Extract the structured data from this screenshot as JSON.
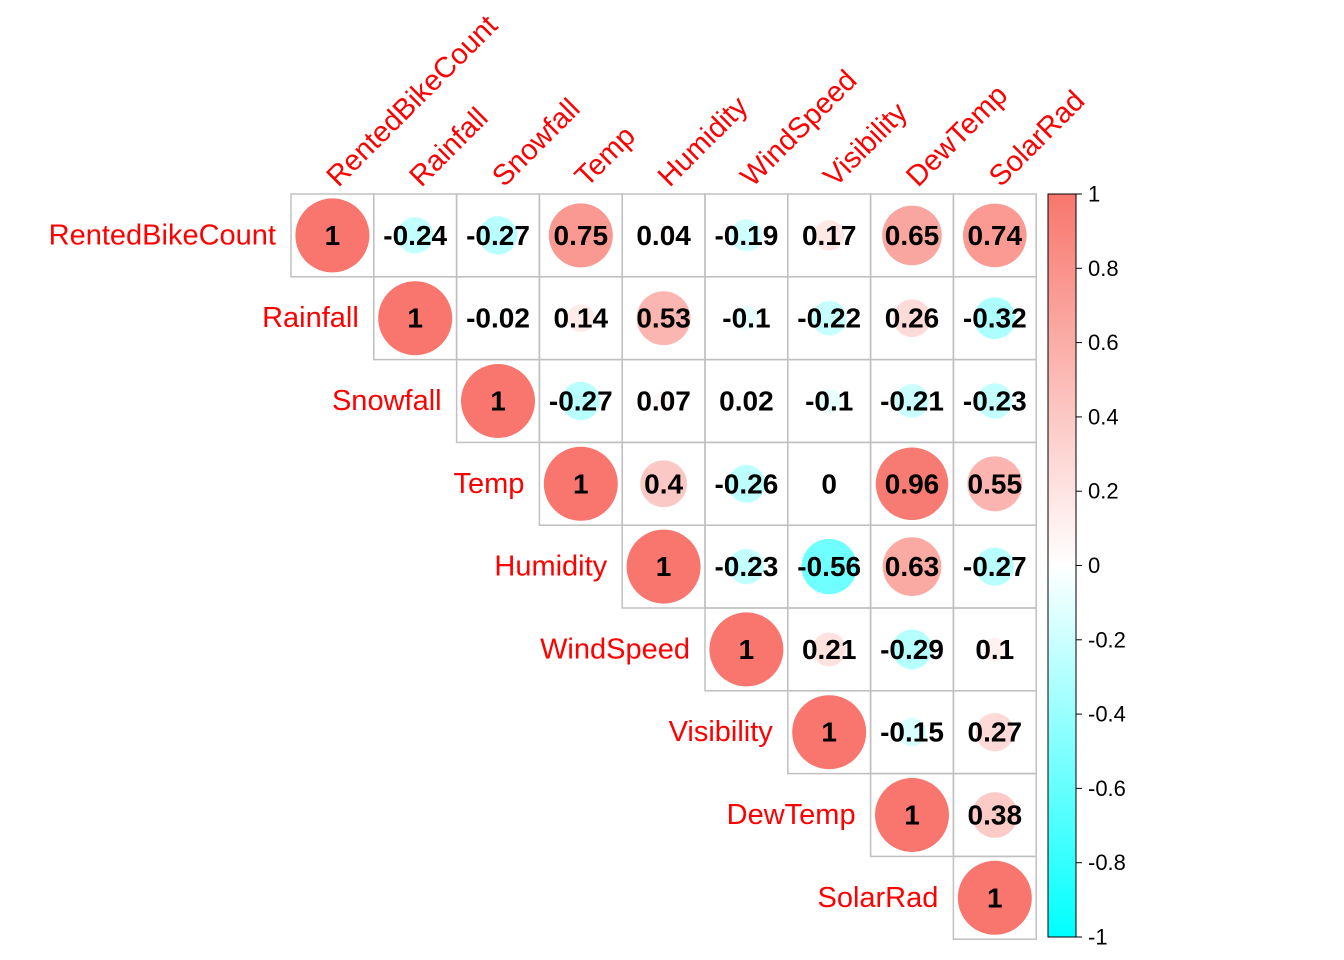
{
  "chart_data": {
    "type": "heatmap",
    "title": "",
    "variables": [
      "RentedBikeCount",
      "Rainfall",
      "Snowfall",
      "Temp",
      "Humidity",
      "WindSpeed",
      "Visibility",
      "DewTemp",
      "SolarRad"
    ],
    "matrix": [
      [
        1,
        -0.24,
        -0.27,
        0.75,
        0.04,
        -0.19,
        0.17,
        0.65,
        0.74
      ],
      [
        null,
        1,
        -0.02,
        0.14,
        0.53,
        -0.1,
        -0.22,
        0.26,
        -0.32
      ],
      [
        null,
        null,
        1,
        -0.27,
        0.07,
        0.02,
        -0.1,
        -0.21,
        -0.23
      ],
      [
        null,
        null,
        null,
        1,
        0.4,
        -0.26,
        0,
        0.96,
        0.55
      ],
      [
        null,
        null,
        null,
        null,
        1,
        -0.23,
        -0.56,
        0.63,
        -0.27
      ],
      [
        null,
        null,
        null,
        null,
        null,
        1,
        0.21,
        -0.29,
        0.1
      ],
      [
        null,
        null,
        null,
        null,
        null,
        null,
        1,
        -0.15,
        0.27
      ],
      [
        null,
        null,
        null,
        null,
        null,
        null,
        null,
        1,
        0.38
      ],
      [
        null,
        null,
        null,
        null,
        null,
        null,
        null,
        null,
        1
      ]
    ],
    "labels": [
      [
        "1",
        "-0.24",
        "-0.27",
        "0.75",
        "0.04",
        "-0.19",
        "0.17",
        "0.65",
        "0.74"
      ],
      [
        null,
        "1",
        "-0.02",
        "0.14",
        "0.53",
        "-0.1",
        "-0.22",
        "0.26",
        "-0.32"
      ],
      [
        null,
        null,
        "1",
        "-0.27",
        "0.07",
        "0.02",
        "-0.1",
        "-0.21",
        "-0.23"
      ],
      [
        null,
        null,
        null,
        "1",
        "0.4",
        "-0.26",
        "0",
        "0.96",
        "0.55"
      ],
      [
        null,
        null,
        null,
        null,
        "1",
        "-0.23",
        "-0.56",
        "0.63",
        "-0.27"
      ],
      [
        null,
        null,
        null,
        null,
        null,
        "1",
        "0.21",
        "-0.29",
        "0.1"
      ],
      [
        null,
        null,
        null,
        null,
        null,
        null,
        "1",
        "-0.15",
        "0.27"
      ],
      [
        null,
        null,
        null,
        null,
        null,
        null,
        null,
        "1",
        "0.38"
      ],
      [
        null,
        null,
        null,
        null,
        null,
        null,
        null,
        null,
        "1"
      ]
    ],
    "legend": {
      "placement": "right",
      "min": -1,
      "max": 1,
      "ticks": [
        "1",
        "0.8",
        "0.6",
        "0.4",
        "0.2",
        "0",
        "-0.2",
        "-0.4",
        "-0.6",
        "-0.8",
        "-1"
      ],
      "colors": {
        "negative": "#00ffff",
        "zero": "#ffffff",
        "positive": "#f8766d"
      }
    },
    "upper_triangle": true,
    "grid": true
  }
}
